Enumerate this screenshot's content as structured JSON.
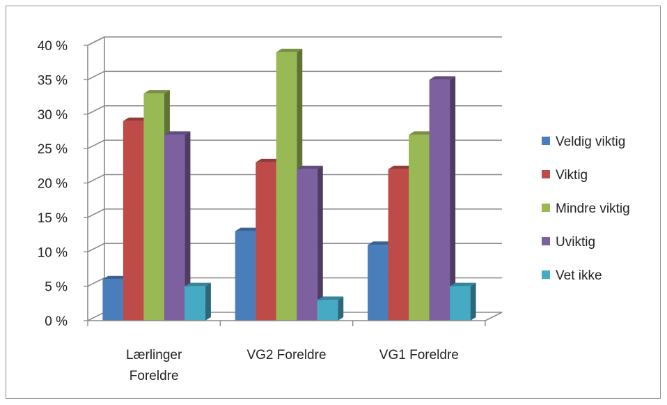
{
  "chart_data": {
    "type": "bar",
    "title": "",
    "xlabel": "",
    "ylabel": "",
    "ylim": [
      0,
      40
    ],
    "yticks": [
      "0 %",
      "5 %",
      "10 %",
      "15 %",
      "20 %",
      "25 %",
      "30 %",
      "35 %",
      "40 %"
    ],
    "grid": true,
    "legend_position": "right",
    "categories": [
      [
        "Lærlinger",
        "Foreldre"
      ],
      [
        "VG2 Foreldre"
      ],
      [
        "VG1 Foreldre"
      ]
    ],
    "series": [
      {
        "name": "Veldig viktig",
        "color": "#4a7ebb",
        "values": [
          6,
          13,
          11
        ]
      },
      {
        "name": "Viktig",
        "color": "#be4b48",
        "values": [
          29,
          23,
          22
        ]
      },
      {
        "name": "Mindre viktig",
        "color": "#98b954",
        "values": [
          33,
          39,
          27
        ]
      },
      {
        "name": "Uviktig",
        "color": "#7d60a0",
        "values": [
          27,
          22,
          35
        ]
      },
      {
        "name": "Vet ikke",
        "color": "#46aac5",
        "values": [
          5,
          3,
          5
        ]
      }
    ]
  }
}
